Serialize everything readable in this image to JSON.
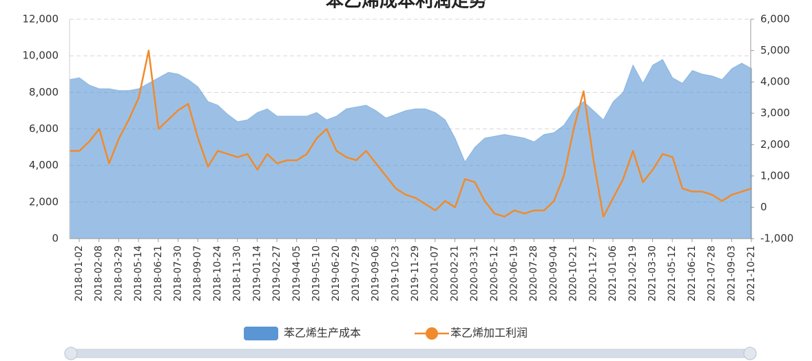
{
  "chart_data": {
    "type": "area-line",
    "title": "苯乙烯成本利润走势",
    "categories": [
      "2018-01-02",
      null,
      "2018-02-08",
      null,
      "2018-03-29",
      null,
      "2018-05-14",
      null,
      "2018-06-21",
      null,
      "2018-07-30",
      null,
      "2018-09-07",
      null,
      "2018-10-24",
      null,
      "2018-11-30",
      null,
      "2019-01-14",
      null,
      "2019-02-27",
      null,
      "2019-04-05",
      null,
      "2019-05-10",
      null,
      "2019-06-20",
      null,
      "2019-07-29",
      null,
      "2019-09-06",
      null,
      "2019-10-23",
      null,
      "2019-11-29",
      null,
      "2020-01-07",
      null,
      "2020-02-21",
      null,
      "2020-03-31",
      null,
      "2020-05-12",
      null,
      "2020-06-19",
      null,
      "2020-07-28",
      null,
      "2020-09-04",
      null,
      "2020-10-21",
      null,
      "2020-11-27",
      null,
      "2021-01-06",
      null,
      "2021-02-19",
      null,
      "2021-03-30",
      null,
      "2021-05-12",
      null,
      "2021-06-21",
      null,
      "2021-07-28",
      null,
      "2021-09-03",
      null,
      "2021-10-21",
      null
    ],
    "series": [
      {
        "name": "苯乙烯生产成本",
        "kind": "area",
        "color": "#5a96d3",
        "axis": "y",
        "values": [
          8700,
          8800,
          8400,
          8200,
          8200,
          8100,
          8100,
          8200,
          8500,
          8800,
          9100,
          9000,
          8700,
          8300,
          7500,
          7300,
          6800,
          6400,
          6500,
          6900,
          7100,
          6700,
          6700,
          6700,
          6700,
          6900,
          6500,
          6700,
          7100,
          7200,
          7300,
          7000,
          6600,
          6800,
          7000,
          7100,
          7100,
          6900,
          6500,
          5500,
          4200,
          5000,
          5500,
          5600,
          5700,
          5600,
          5500,
          5300,
          5700,
          5800,
          6200,
          7000,
          7500,
          7000,
          6500,
          7500,
          8000,
          9500,
          8500,
          9500,
          9800,
          8800,
          8500,
          9200,
          9000,
          8900,
          8700,
          9300,
          9600,
          9300
        ]
      },
      {
        "name": "苯乙烯加工利润",
        "kind": "line",
        "color": "#f08a2c",
        "axis": "y2",
        "values": [
          1800,
          1800,
          2100,
          2500,
          1400,
          2200,
          2800,
          3500,
          5000,
          2500,
          2800,
          3100,
          3300,
          2200,
          1300,
          1800,
          1700,
          1600,
          1700,
          1200,
          1700,
          1400,
          1500,
          1500,
          1700,
          2200,
          2500,
          1800,
          1600,
          1500,
          1800,
          1400,
          1000,
          600,
          400,
          300,
          100,
          -100,
          200,
          0,
          900,
          800,
          200,
          -200,
          -300,
          -100,
          -200,
          -100,
          -100,
          200,
          1000,
          2500,
          3700,
          1500,
          -300,
          300,
          900,
          1800,
          800,
          1200,
          1700,
          1600,
          600,
          500,
          500,
          400,
          200,
          400,
          500,
          600
        ]
      }
    ],
    "ylim": [
      0,
      12000
    ],
    "yticks": [
      0,
      {
        "value": 2000,
        "label": "2,000"
      },
      {
        "value": 4000,
        "label": "4,000"
      },
      {
        "value": 6000,
        "label": "6,000"
      },
      {
        "value": 8000,
        "label": "8,000"
      },
      {
        "value": 10000,
        "label": "10,000"
      },
      {
        "value": 12000,
        "label": "12,000"
      }
    ],
    "y2lim": [
      -1000,
      6000
    ],
    "y2ticks": [
      {
        "value": -1000,
        "label": "-1,000"
      },
      0,
      {
        "value": 1000,
        "label": "1,000"
      },
      {
        "value": 2000,
        "label": "2,000"
      },
      {
        "value": 3000,
        "label": "3,000"
      },
      {
        "value": 4000,
        "label": "4,000"
      },
      {
        "value": 5000,
        "label": "5,000"
      },
      {
        "value": 6000,
        "label": "6,000"
      }
    ],
    "grid": true,
    "legend": "bottom"
  }
}
